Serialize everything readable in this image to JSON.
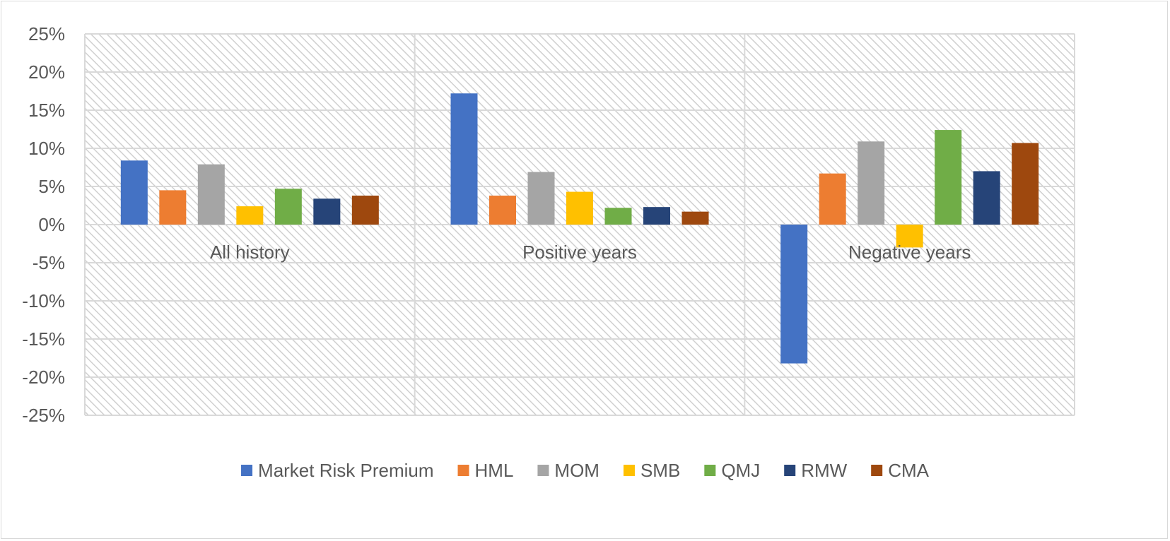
{
  "chart_data": {
    "type": "bar",
    "categories": [
      "All history",
      "Positive years",
      "Negative years"
    ],
    "series": [
      {
        "name": "Market Risk Premium",
        "color": "#4472C4",
        "values": [
          0.084,
          0.172,
          -0.182
        ]
      },
      {
        "name": "HML",
        "color": "#ED7D31",
        "values": [
          0.045,
          0.038,
          0.067
        ]
      },
      {
        "name": "MOM",
        "color": "#A5A5A5",
        "values": [
          0.079,
          0.069,
          0.109
        ]
      },
      {
        "name": "SMB",
        "color": "#FFC000",
        "values": [
          0.024,
          0.043,
          -0.03
        ]
      },
      {
        "name": "QMJ",
        "color": "#70AD47",
        "values": [
          0.047,
          0.022,
          0.124
        ]
      },
      {
        "name": "RMW",
        "color": "#264478",
        "values": [
          0.034,
          0.023,
          0.07
        ]
      },
      {
        "name": "CMA",
        "color": "#9E480E",
        "values": [
          0.038,
          0.017,
          0.107
        ]
      }
    ],
    "ylim": [
      -0.25,
      0.25
    ],
    "yticks": [
      "25%",
      "20%",
      "15%",
      "10%",
      "5%",
      "0%",
      "-5%",
      "-10%",
      "-15%",
      "-20%",
      "-25%"
    ],
    "title": "",
    "xlabel": "",
    "ylabel": "",
    "grid": true,
    "legend_position": "bottom",
    "plot_background": "diagonal-hatch light gray"
  }
}
